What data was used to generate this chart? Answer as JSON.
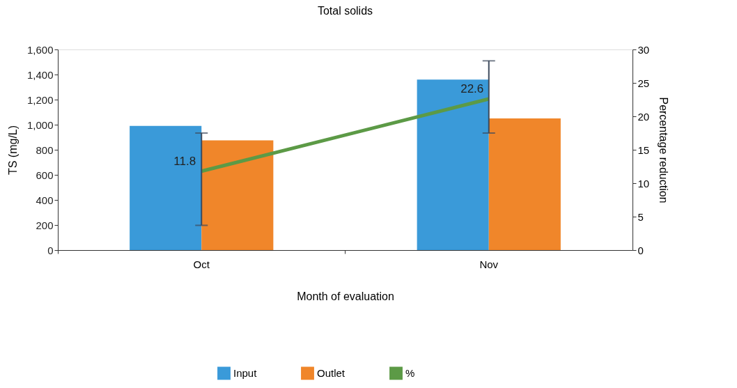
{
  "chart_data": {
    "type": "bar",
    "title": "Total solids",
    "xlabel": "Month of evaluation",
    "ylabel": "TS (mg/L)",
    "y2label": "Percentage reduction",
    "categories": [
      "Oct",
      "Nov"
    ],
    "series": [
      {
        "name": "Input",
        "color": "#3a9ad9",
        "values": [
          990,
          1360
        ]
      },
      {
        "name": "Outlet",
        "color": "#f0862a",
        "values": [
          875,
          1050
        ]
      },
      {
        "name": "%",
        "type": "line",
        "axis": "y2",
        "color": "#5c9a46",
        "values": [
          11.8,
          22.6
        ],
        "errors": [
          [
            3.7,
            17.5
          ],
          [
            17.5,
            28.3
          ]
        ],
        "value_labels": [
          "11.8",
          "22.6"
        ]
      }
    ],
    "ylim": [
      0,
      1600
    ],
    "yticks": [
      0,
      {
        "value": 200,
        "label": "200"
      },
      {
        "value": 400,
        "label": "400"
      },
      {
        "value": 600,
        "label": "600"
      },
      {
        "value": 800,
        "label": "800"
      },
      {
        "value": 1000,
        "label": "1,000"
      },
      {
        "value": 1200,
        "label": "1,200"
      },
      {
        "value": 1400,
        "label": "1,400"
      },
      {
        "value": 1600,
        "label": "1,600"
      }
    ],
    "y2lim": [
      0,
      30
    ],
    "y2ticks": [
      0,
      5,
      10,
      15,
      20,
      25,
      30
    ],
    "grid": false,
    "legend": "bottom",
    "marker": "none",
    "line_style": "solid"
  }
}
